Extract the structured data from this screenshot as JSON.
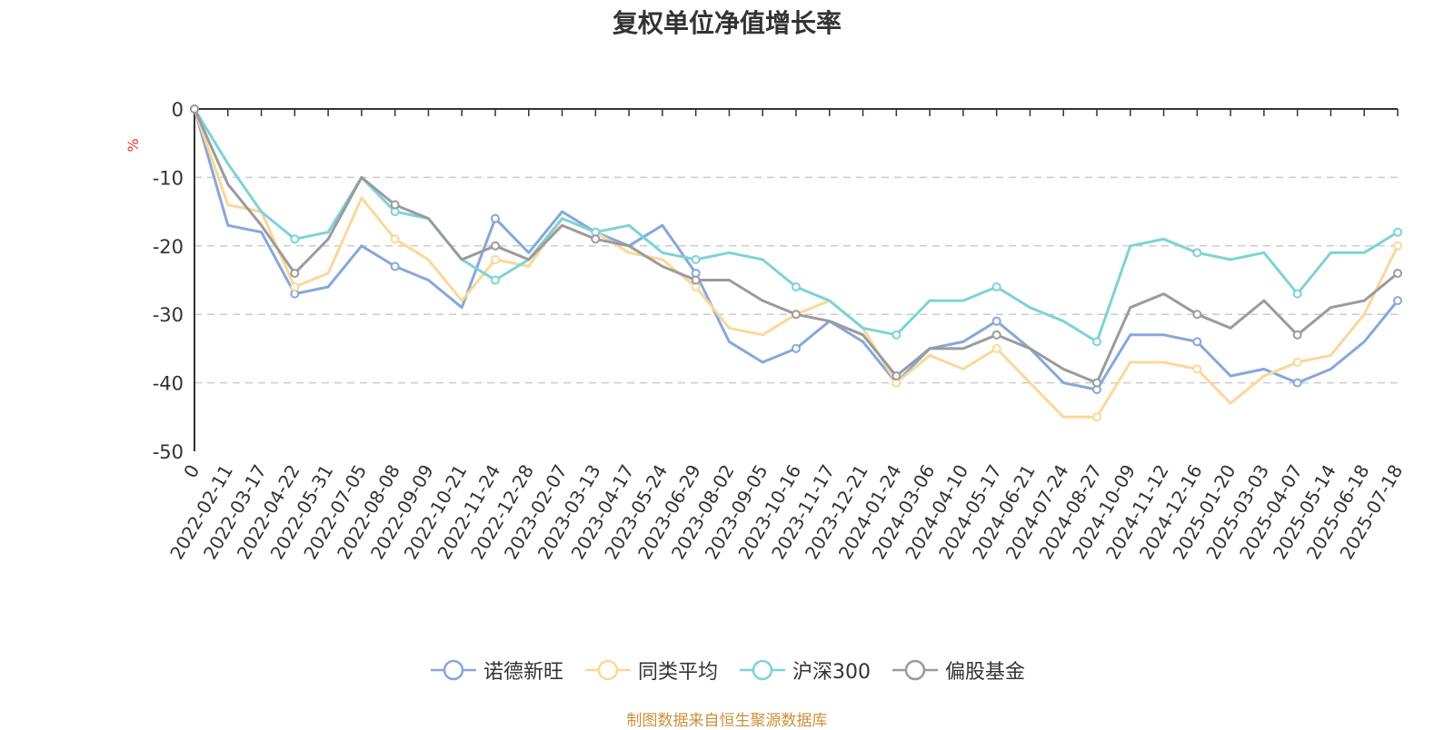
{
  "chart_data": {
    "type": "line",
    "title": "复权单位净值增长率",
    "ylabel": "%",
    "ylim": [
      -50,
      0
    ],
    "yticks": [
      0,
      -10,
      -20,
      -30,
      -40,
      -50
    ],
    "grid": true,
    "legend_position": "bottom-center",
    "x": [
      "0",
      "2022-02-11",
      "2022-03-17",
      "2022-04-22",
      "2022-05-31",
      "2022-07-05",
      "2022-08-08",
      "2022-09-09",
      "2022-10-21",
      "2022-11-24",
      "2022-12-28",
      "2023-02-07",
      "2023-03-13",
      "2023-04-17",
      "2023-05-24",
      "2023-06-29",
      "2023-08-02",
      "2023-09-05",
      "2023-10-16",
      "2023-11-17",
      "2023-12-21",
      "2024-01-24",
      "2024-03-06",
      "2024-04-10",
      "2024-05-17",
      "2024-06-21",
      "2024-07-24",
      "2024-08-27",
      "2024-10-09",
      "2024-11-12",
      "2024-12-16",
      "2025-01-20",
      "2025-03-03",
      "2025-04-07",
      "2025-05-14",
      "2025-06-18",
      "2025-07-18"
    ],
    "series": [
      {
        "name": "诺德新旺",
        "color": "#87a7dc",
        "values": [
          0,
          -17,
          -18,
          -27,
          -26,
          -20,
          -23,
          -25,
          -29,
          -16,
          -21,
          -15,
          -18,
          -20,
          -17,
          -24,
          -34,
          -37,
          -35,
          -31,
          -34,
          -40,
          -35,
          -34,
          -31,
          -35,
          -40,
          -41,
          -33,
          -33,
          -34,
          -39,
          -38,
          -40,
          -38,
          -34,
          -28
        ]
      },
      {
        "name": "同类平均",
        "color": "#fbd898",
        "values": [
          0,
          -14,
          -15,
          -26,
          -24,
          -13,
          -19,
          -22,
          -28,
          -22,
          -23,
          -16,
          -18,
          -21,
          -22,
          -26,
          -32,
          -33,
          -30,
          -28,
          -32,
          -40,
          -36,
          -38,
          -35,
          -40,
          -45,
          -45,
          -37,
          -37,
          -38,
          -43,
          -39,
          -37,
          -36,
          -30,
          -20
        ]
      },
      {
        "name": "沪深300",
        "color": "#7dd3d6",
        "values": [
          0,
          -8,
          -15,
          -19,
          -18,
          -10,
          -15,
          -16,
          -22,
          -25,
          -22,
          -16,
          -18,
          -17,
          -21,
          -22,
          -21,
          -22,
          -26,
          -28,
          -32,
          -33,
          -28,
          -28,
          -26,
          -29,
          -31,
          -34,
          -20,
          -19,
          -21,
          -22,
          -21,
          -27,
          -21,
          -21,
          -18
        ]
      },
      {
        "name": "偏股基金",
        "color": "#9b9b9b",
        "values": [
          0,
          -11,
          -17,
          -24,
          -19,
          -10,
          -14,
          -16,
          -22,
          -20,
          -22,
          -17,
          -19,
          -20,
          -23,
          -25,
          -25,
          -28,
          -30,
          -31,
          -33,
          -39,
          -35,
          -35,
          -33,
          -35,
          -38,
          -40,
          -29,
          -27,
          -30,
          -32,
          -28,
          -33,
          -29,
          -28,
          -24
        ]
      }
    ]
  },
  "source_note": "制图数据来自恒生聚源数据库"
}
